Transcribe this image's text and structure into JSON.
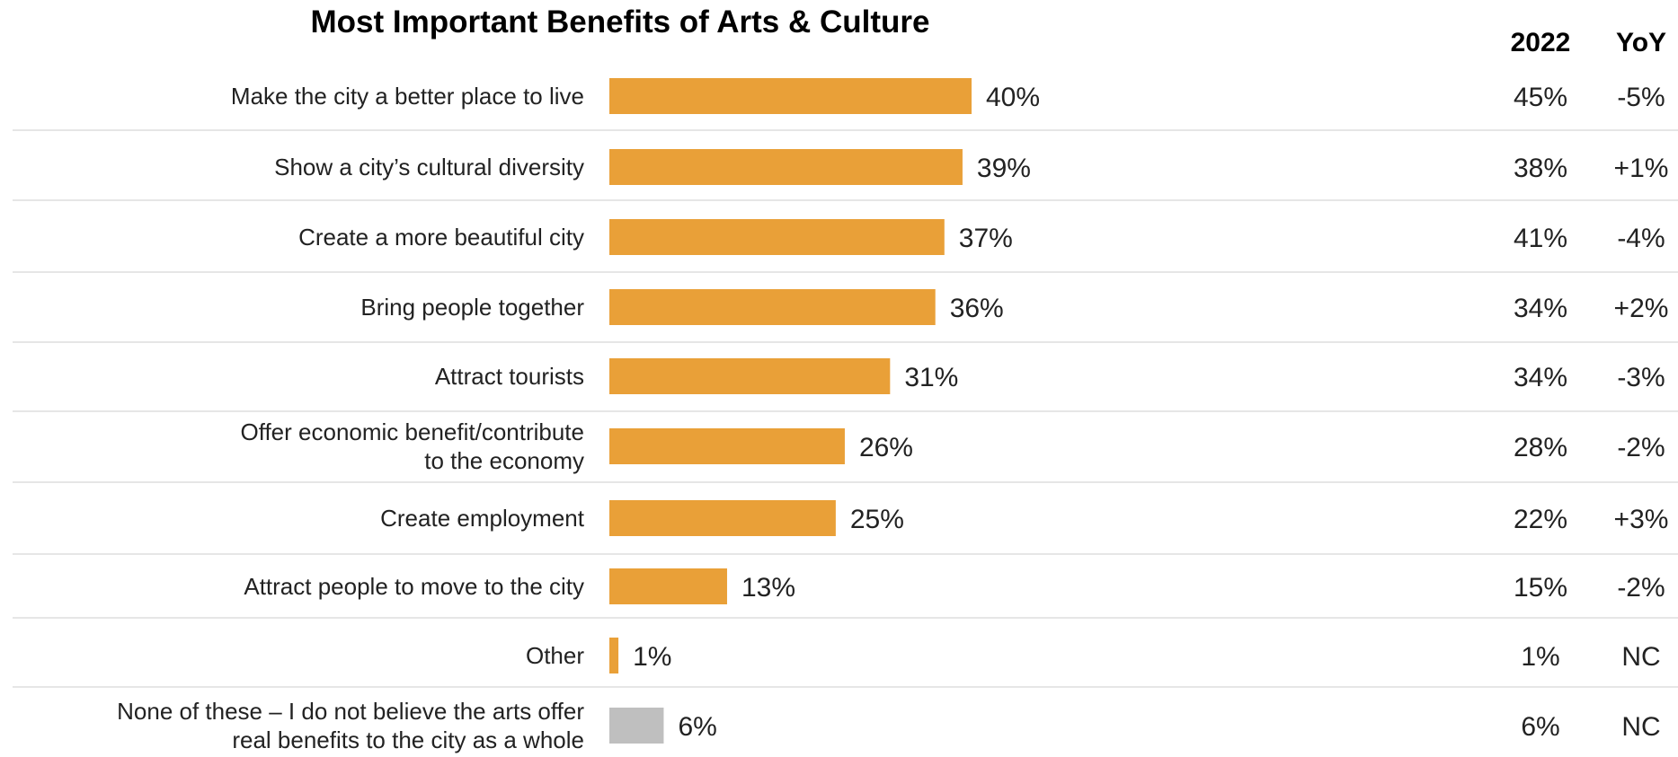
{
  "chart_data": {
    "type": "bar",
    "orientation": "horizontal",
    "title": "Most Important Benefits of Arts & Culture",
    "columns": {
      "prior_label": "2022",
      "change_label": "YoY"
    },
    "colors": {
      "bar": "#e9a038",
      "bar_none": "#bfbfbf",
      "negative": "#e8161c",
      "positive": "#1aa84a",
      "neutral": "#222222"
    },
    "xlim": [
      0,
      100
    ],
    "rows": [
      {
        "label": [
          "Make the city a better place to live"
        ],
        "value": 40,
        "value_label": "40%",
        "prior": "45%",
        "change": "-5%",
        "change_sign": "negative"
      },
      {
        "label": [
          "Show a city’s cultural diversity"
        ],
        "value": 39,
        "value_label": "39%",
        "prior": "38%",
        "change": "+1%",
        "change_sign": "positive"
      },
      {
        "label": [
          "Create a more beautiful city"
        ],
        "value": 37,
        "value_label": "37%",
        "prior": "41%",
        "change": "-4%",
        "change_sign": "negative"
      },
      {
        "label": [
          "Bring people together"
        ],
        "value": 36,
        "value_label": "36%",
        "prior": "34%",
        "change": "+2%",
        "change_sign": "positive"
      },
      {
        "label": [
          "Attract tourists"
        ],
        "value": 31,
        "value_label": "31%",
        "prior": "34%",
        "change": "-3%",
        "change_sign": "negative"
      },
      {
        "label": [
          "Offer economic benefit/contribute",
          "to the economy"
        ],
        "value": 26,
        "value_label": "26%",
        "prior": "28%",
        "change": "-2%",
        "change_sign": "negative"
      },
      {
        "label": [
          "Create employment"
        ],
        "value": 25,
        "value_label": "25%",
        "prior": "22%",
        "change": "+3%",
        "change_sign": "positive"
      },
      {
        "label": [
          "Attract people to move to the city"
        ],
        "value": 13,
        "value_label": "13%",
        "prior": "15%",
        "change": "-2%",
        "change_sign": "negative"
      },
      {
        "label": [
          "Other"
        ],
        "value": 1,
        "value_label": "1%",
        "prior": "1%",
        "change": "NC",
        "change_sign": "neutral"
      },
      {
        "label": [
          "None of these – I do not believe the arts offer",
          "real benefits to the city as a whole"
        ],
        "value": 6,
        "value_label": "6%",
        "prior": "6%",
        "change": "NC",
        "change_sign": "neutral",
        "muted": true
      }
    ]
  }
}
